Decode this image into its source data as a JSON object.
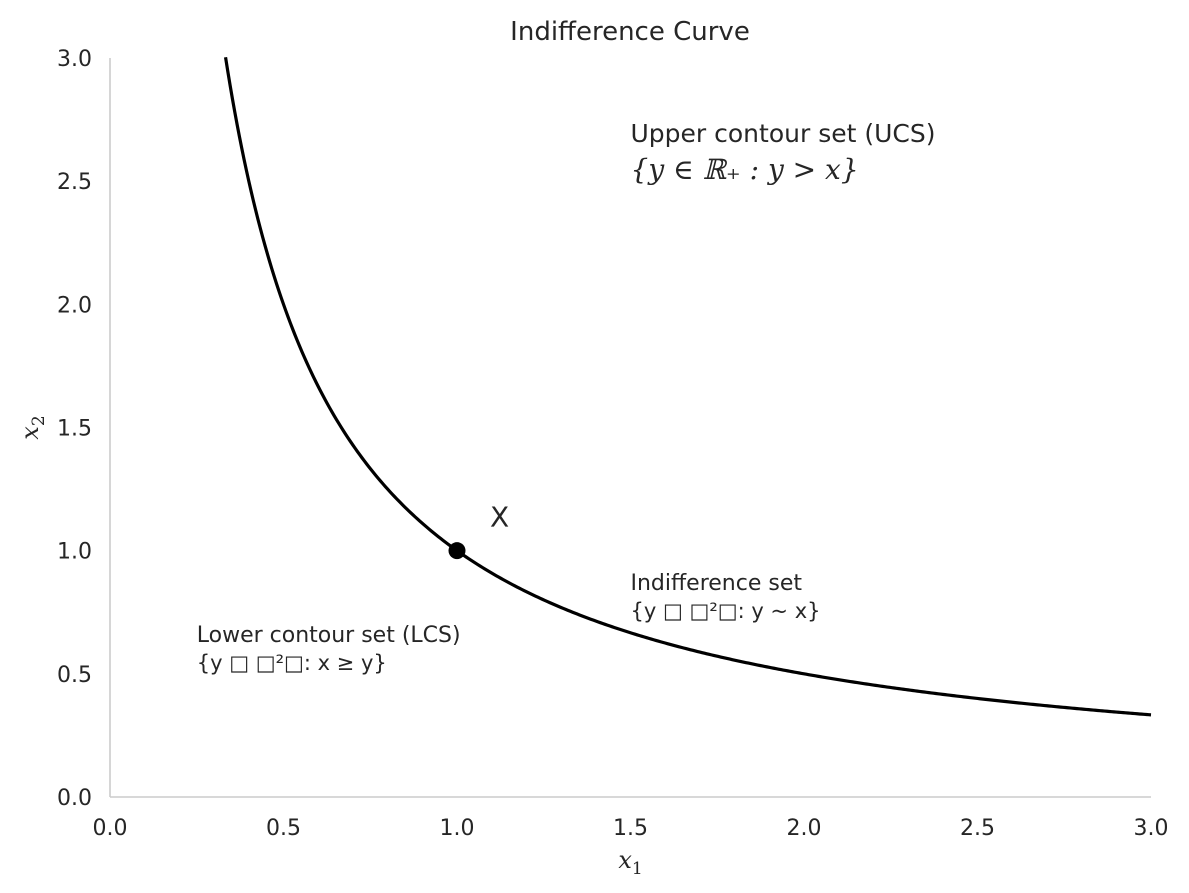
{
  "chart_data": {
    "type": "line",
    "title": "Indifference Curve",
    "xlabel": {
      "base": "x",
      "sub": "1"
    },
    "ylabel": {
      "base": "x",
      "sub": "2"
    },
    "xlim": [
      0,
      3
    ],
    "ylim": [
      0,
      3
    ],
    "xticks": [
      "0.0",
      "0.5",
      "1.0",
      "1.5",
      "2.0",
      "2.5",
      "3.0"
    ],
    "yticks": [
      "0.0",
      "0.5",
      "1.0",
      "1.5",
      "2.0",
      "2.5",
      "3.0"
    ],
    "grid": false,
    "series": [
      {
        "equation": "x2 = 1 / x1",
        "x_range": [
          0.333,
          3.0
        ],
        "color": "#000000"
      }
    ],
    "points": [
      {
        "x": 1.0,
        "y": 1.0,
        "label": "X",
        "color": "#000000"
      }
    ],
    "annotations": [
      {
        "x": 1.5,
        "y": 2.66,
        "line1": "Upper contour set (UCS)",
        "line2": "{y ∈ ℝ₊ : y > x}"
      },
      {
        "x": 1.5,
        "y": 0.84,
        "line1": "Indifference set",
        "line2": "{y □ □²□: y ~ x}"
      },
      {
        "x": 0.25,
        "y": 0.63,
        "line1": "Lower contour set (LCS)",
        "line2": "{y □ □²□: x ≥ y}"
      }
    ],
    "colors": {
      "axis": "#cccccc",
      "text": "#262626",
      "curve": "#000000"
    }
  }
}
